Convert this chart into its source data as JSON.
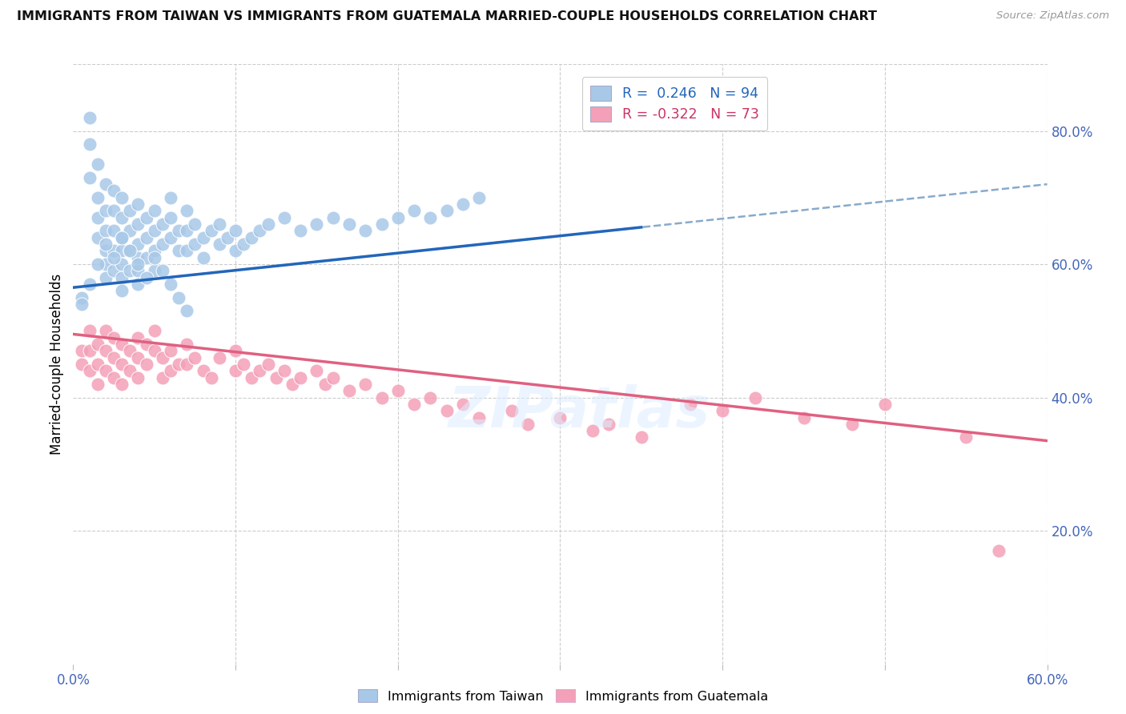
{
  "title": "IMMIGRANTS FROM TAIWAN VS IMMIGRANTS FROM GUATEMALA MARRIED-COUPLE HOUSEHOLDS CORRELATION CHART",
  "source": "Source: ZipAtlas.com",
  "ylabel": "Married-couple Households",
  "xlim": [
    0.0,
    0.6
  ],
  "ylim": [
    0.0,
    0.9
  ],
  "xtick_positions": [
    0.0,
    0.1,
    0.2,
    0.3,
    0.4,
    0.5,
    0.6
  ],
  "xtick_labels": [
    "0.0%",
    "",
    "",
    "",
    "",
    "",
    "60.0%"
  ],
  "ytick_positions_right": [
    0.2,
    0.4,
    0.6,
    0.8
  ],
  "ytick_labels_right": [
    "20.0%",
    "40.0%",
    "60.0%",
    "80.0%"
  ],
  "taiwan_R": 0.246,
  "taiwan_N": 94,
  "guatemala_R": -0.322,
  "guatemala_N": 73,
  "taiwan_color": "#a8c8e8",
  "guatemala_color": "#f4a0b8",
  "taiwan_line_color": "#2266bb",
  "taiwan_line_dash_color": "#88aacc",
  "guatemala_line_color": "#e06080",
  "taiwan_line_x0": 0.0,
  "taiwan_line_y0": 0.565,
  "taiwan_line_x1": 0.6,
  "taiwan_line_y1": 0.72,
  "taiwan_line_solid_x1": 0.35,
  "guatemala_line_x0": 0.0,
  "guatemala_line_y0": 0.495,
  "guatemala_line_x1": 0.6,
  "guatemala_line_y1": 0.335,
  "taiwan_scatter_x": [
    0.005,
    0.01,
    0.01,
    0.01,
    0.015,
    0.015,
    0.015,
    0.015,
    0.02,
    0.02,
    0.02,
    0.02,
    0.02,
    0.02,
    0.025,
    0.025,
    0.025,
    0.025,
    0.025,
    0.03,
    0.03,
    0.03,
    0.03,
    0.03,
    0.03,
    0.03,
    0.035,
    0.035,
    0.035,
    0.035,
    0.04,
    0.04,
    0.04,
    0.04,
    0.04,
    0.04,
    0.045,
    0.045,
    0.045,
    0.05,
    0.05,
    0.05,
    0.05,
    0.055,
    0.055,
    0.06,
    0.06,
    0.06,
    0.065,
    0.065,
    0.07,
    0.07,
    0.07,
    0.075,
    0.075,
    0.08,
    0.08,
    0.085,
    0.09,
    0.09,
    0.095,
    0.1,
    0.1,
    0.105,
    0.11,
    0.115,
    0.12,
    0.13,
    0.14,
    0.15,
    0.16,
    0.17,
    0.18,
    0.19,
    0.2,
    0.21,
    0.22,
    0.23,
    0.24,
    0.25,
    0.005,
    0.01,
    0.015,
    0.02,
    0.025,
    0.03,
    0.035,
    0.04,
    0.045,
    0.05,
    0.055,
    0.06,
    0.065,
    0.07
  ],
  "taiwan_scatter_y": [
    0.55,
    0.78,
    0.82,
    0.73,
    0.75,
    0.7,
    0.67,
    0.64,
    0.72,
    0.68,
    0.65,
    0.62,
    0.6,
    0.58,
    0.71,
    0.68,
    0.65,
    0.62,
    0.59,
    0.7,
    0.67,
    0.64,
    0.62,
    0.6,
    0.58,
    0.56,
    0.68,
    0.65,
    0.62,
    0.59,
    0.69,
    0.66,
    0.63,
    0.61,
    0.59,
    0.57,
    0.67,
    0.64,
    0.61,
    0.68,
    0.65,
    0.62,
    0.59,
    0.66,
    0.63,
    0.7,
    0.67,
    0.64,
    0.65,
    0.62,
    0.68,
    0.65,
    0.62,
    0.66,
    0.63,
    0.64,
    0.61,
    0.65,
    0.66,
    0.63,
    0.64,
    0.65,
    0.62,
    0.63,
    0.64,
    0.65,
    0.66,
    0.67,
    0.65,
    0.66,
    0.67,
    0.66,
    0.65,
    0.66,
    0.67,
    0.68,
    0.67,
    0.68,
    0.69,
    0.7,
    0.54,
    0.57,
    0.6,
    0.63,
    0.61,
    0.64,
    0.62,
    0.6,
    0.58,
    0.61,
    0.59,
    0.57,
    0.55,
    0.53
  ],
  "guatemala_scatter_x": [
    0.005,
    0.005,
    0.01,
    0.01,
    0.01,
    0.015,
    0.015,
    0.015,
    0.02,
    0.02,
    0.02,
    0.025,
    0.025,
    0.025,
    0.03,
    0.03,
    0.03,
    0.035,
    0.035,
    0.04,
    0.04,
    0.04,
    0.045,
    0.045,
    0.05,
    0.05,
    0.055,
    0.055,
    0.06,
    0.06,
    0.065,
    0.07,
    0.07,
    0.075,
    0.08,
    0.085,
    0.09,
    0.1,
    0.1,
    0.105,
    0.11,
    0.115,
    0.12,
    0.125,
    0.13,
    0.135,
    0.14,
    0.15,
    0.155,
    0.16,
    0.17,
    0.18,
    0.19,
    0.2,
    0.21,
    0.22,
    0.23,
    0.24,
    0.25,
    0.27,
    0.28,
    0.3,
    0.32,
    0.33,
    0.35,
    0.38,
    0.4,
    0.42,
    0.45,
    0.48,
    0.5,
    0.55,
    0.57
  ],
  "guatemala_scatter_y": [
    0.47,
    0.45,
    0.5,
    0.47,
    0.44,
    0.48,
    0.45,
    0.42,
    0.5,
    0.47,
    0.44,
    0.49,
    0.46,
    0.43,
    0.48,
    0.45,
    0.42,
    0.47,
    0.44,
    0.49,
    0.46,
    0.43,
    0.48,
    0.45,
    0.5,
    0.47,
    0.46,
    0.43,
    0.47,
    0.44,
    0.45,
    0.48,
    0.45,
    0.46,
    0.44,
    0.43,
    0.46,
    0.47,
    0.44,
    0.45,
    0.43,
    0.44,
    0.45,
    0.43,
    0.44,
    0.42,
    0.43,
    0.44,
    0.42,
    0.43,
    0.41,
    0.42,
    0.4,
    0.41,
    0.39,
    0.4,
    0.38,
    0.39,
    0.37,
    0.38,
    0.36,
    0.37,
    0.35,
    0.36,
    0.34,
    0.39,
    0.38,
    0.4,
    0.37,
    0.36,
    0.39,
    0.34,
    0.17
  ]
}
